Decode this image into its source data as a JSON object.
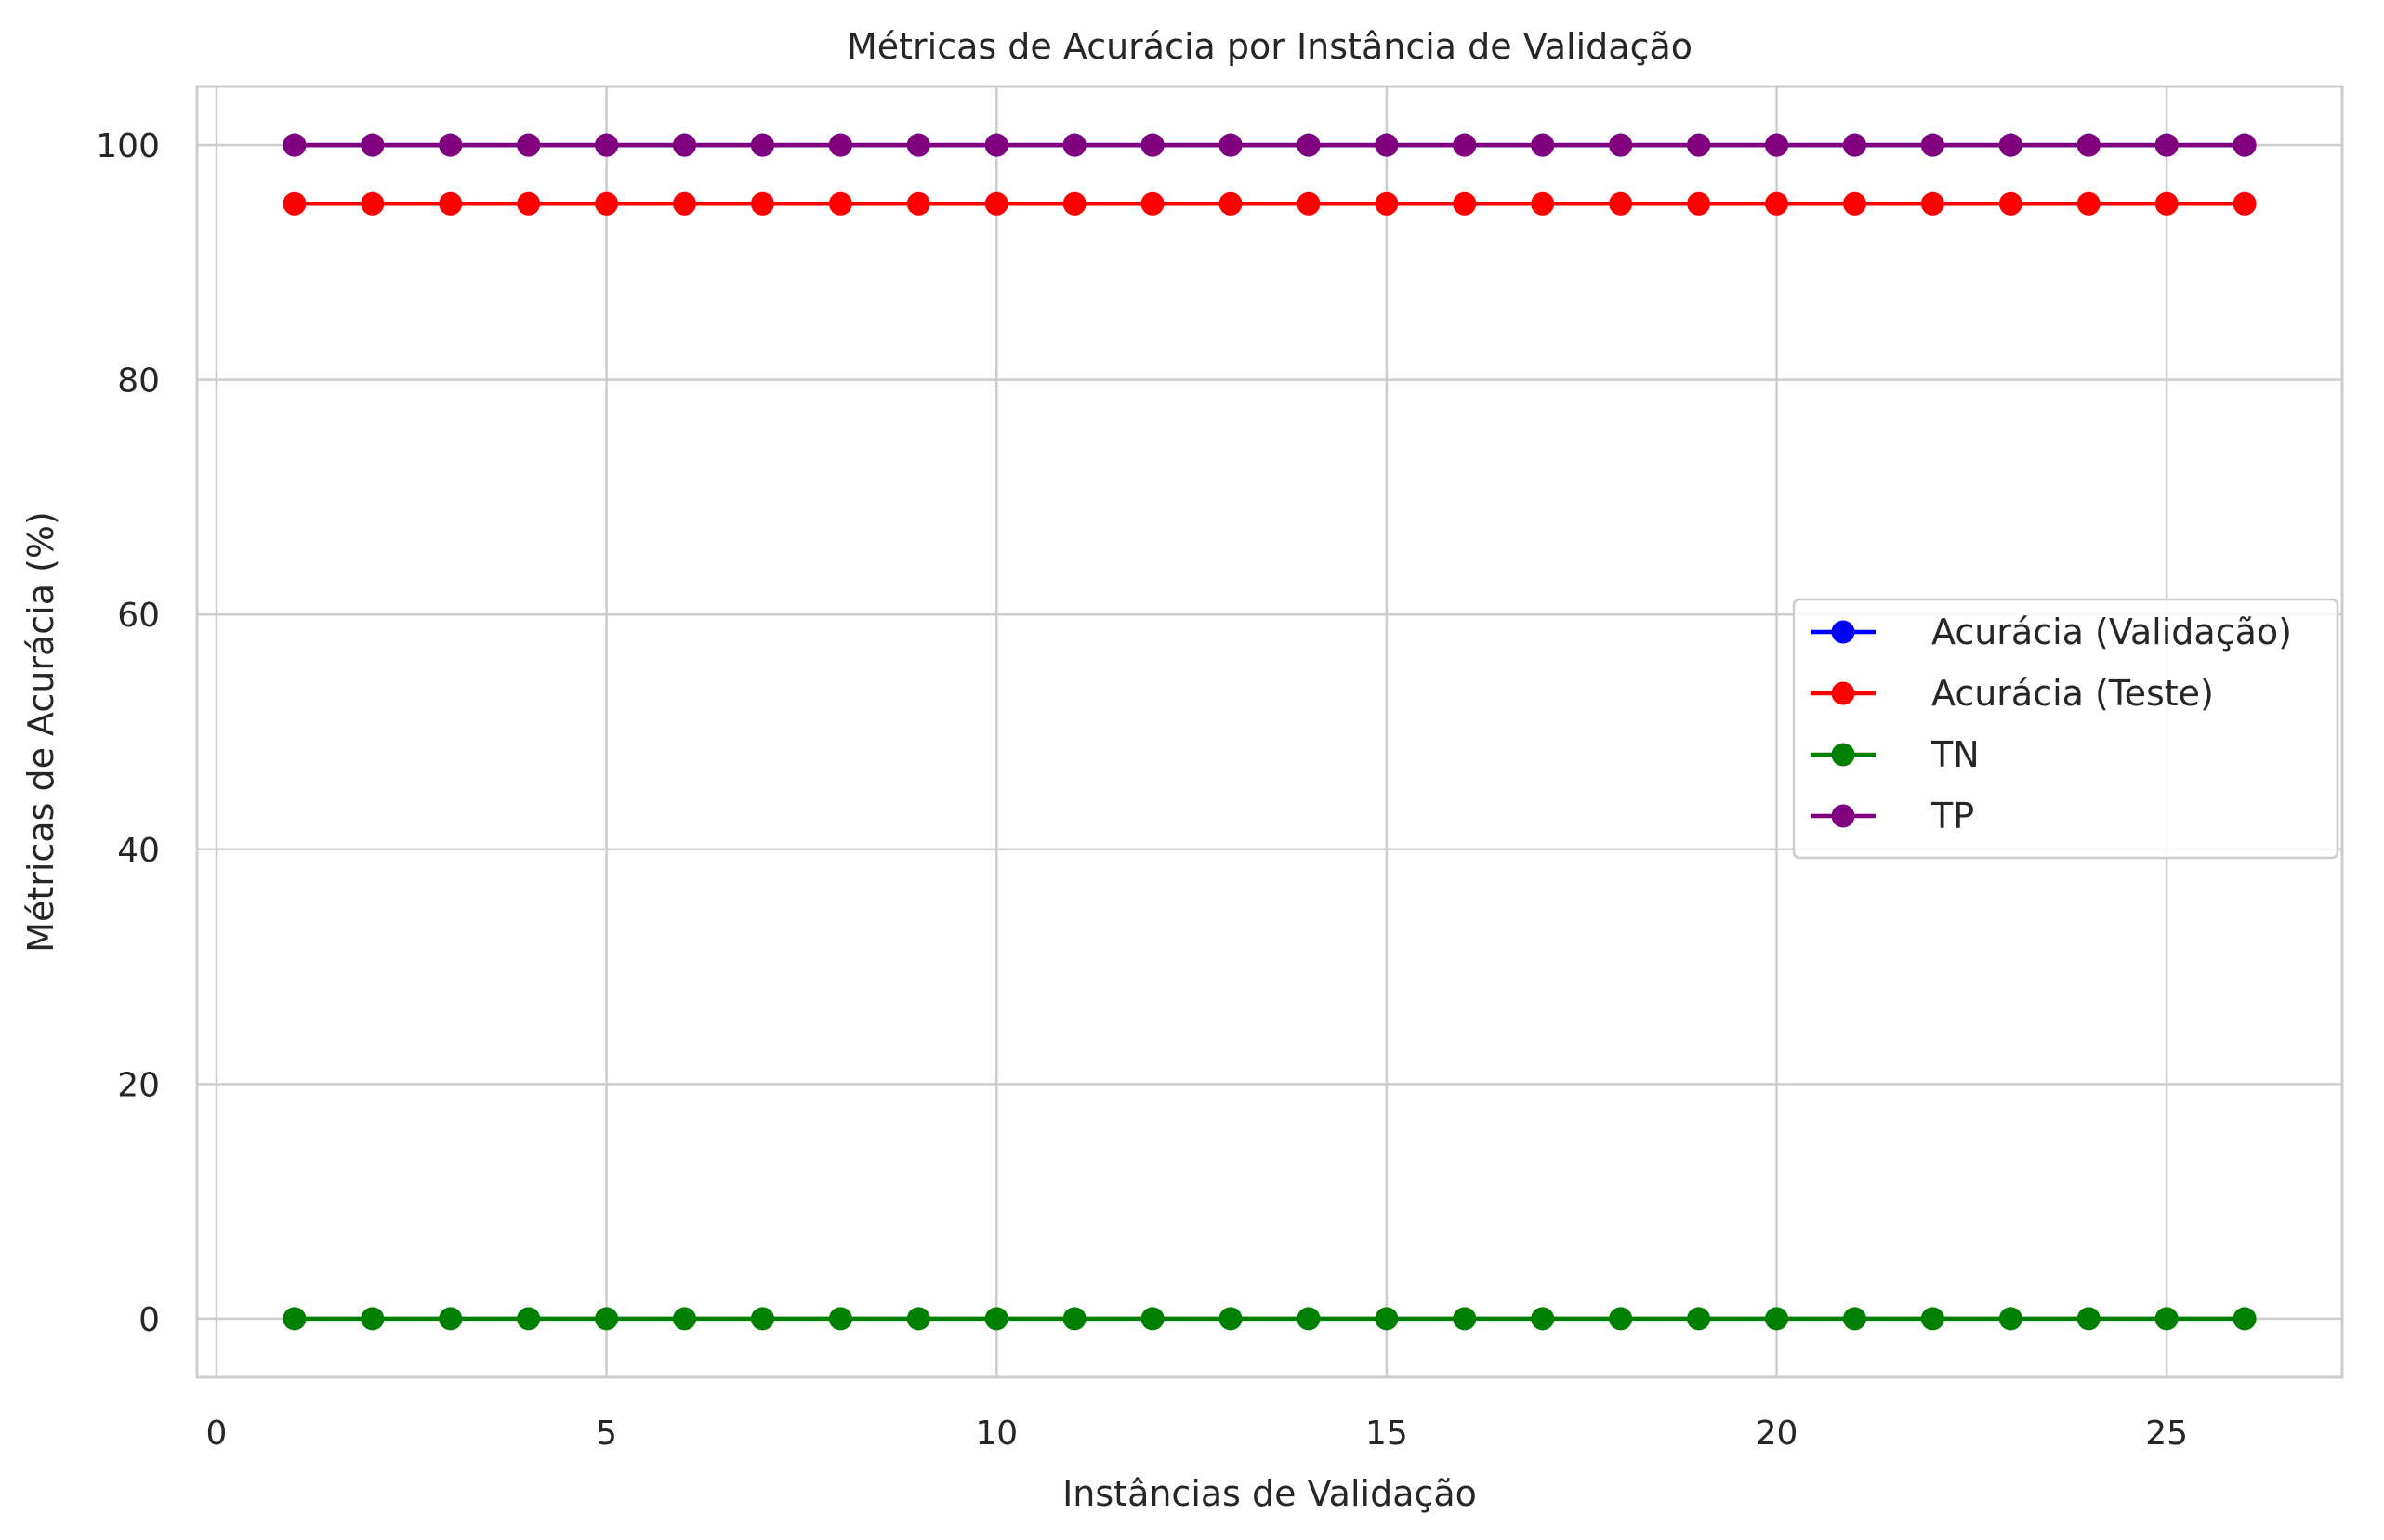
{
  "chart_data": {
    "type": "line",
    "title": "Métricas de Acurácia por Instância de Validação",
    "xlabel": "Instâncias de Validação",
    "ylabel": "Métricas de Acurácia (%)",
    "xlim": [
      -0.25,
      27.25
    ],
    "ylim": [
      -5,
      105
    ],
    "xticks": [
      0,
      5,
      10,
      15,
      20,
      25
    ],
    "yticks": [
      0,
      20,
      40,
      60,
      80,
      100
    ],
    "grid": true,
    "legend_position": "center-right",
    "x": [
      1,
      2,
      3,
      4,
      5,
      6,
      7,
      8,
      9,
      10,
      11,
      12,
      13,
      14,
      15,
      16,
      17,
      18,
      19,
      20,
      21,
      22,
      23,
      24,
      25,
      26
    ],
    "series": [
      {
        "name": "Acurácia (Validação)",
        "color": "#0000ff",
        "values": [
          100,
          100,
          100,
          100,
          100,
          100,
          100,
          100,
          100,
          100,
          100,
          100,
          100,
          100,
          100,
          100,
          100,
          100,
          100,
          100,
          100,
          100,
          100,
          100,
          100,
          100
        ]
      },
      {
        "name": "Acurácia (Teste)",
        "color": "#ff0000",
        "values": [
          95,
          95,
          95,
          95,
          95,
          95,
          95,
          95,
          95,
          95,
          95,
          95,
          95,
          95,
          95,
          95,
          95,
          95,
          95,
          95,
          95,
          95,
          95,
          95,
          95,
          95
        ]
      },
      {
        "name": "TN",
        "color": "#008000",
        "values": [
          0,
          0,
          0,
          0,
          0,
          0,
          0,
          0,
          0,
          0,
          0,
          0,
          0,
          0,
          0,
          0,
          0,
          0,
          0,
          0,
          0,
          0,
          0,
          0,
          0,
          0
        ]
      },
      {
        "name": "TP",
        "color": "#800080",
        "values": [
          100,
          100,
          100,
          100,
          100,
          100,
          100,
          100,
          100,
          100,
          100,
          100,
          100,
          100,
          100,
          100,
          100,
          100,
          100,
          100,
          100,
          100,
          100,
          100,
          100,
          100
        ]
      }
    ]
  }
}
